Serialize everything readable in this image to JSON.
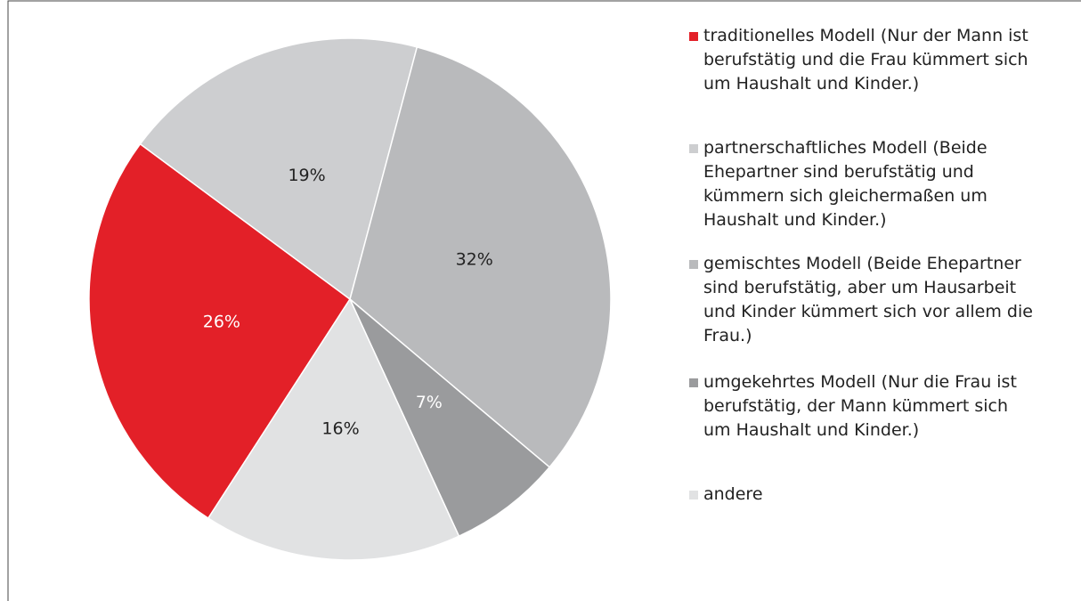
{
  "chart_data": {
    "type": "pie",
    "categories": [
      "traditionelles Modell (Nur der Mann ist berufstätig und die Frau kümmert sich um Haushalt und Kinder.)",
      "partnerschaftliches Modell (Beide Ehepartner sind berufstätig und kümmern sich gleichermaßen um Haushalt und Kinder.)",
      "gemischtes Modell (Beide Ehepartner sind berufstätig, aber um Hausarbeit und Kinder kümmert sich vor allem die Frau.)",
      "umgekehrtes Modell (Nur die Frau ist berufstätig, der Mann kümmert sich um Haushalt und Kinder.)",
      "andere"
    ],
    "values": [
      26,
      19,
      32,
      7,
      16
    ],
    "value_labels": [
      "26%",
      "19%",
      "32%",
      "7%",
      "16%"
    ],
    "colors": [
      "#e32028",
      "#cdced0",
      "#b9babc",
      "#9a9b9d",
      "#e1e2e3"
    ],
    "legend": "right"
  }
}
